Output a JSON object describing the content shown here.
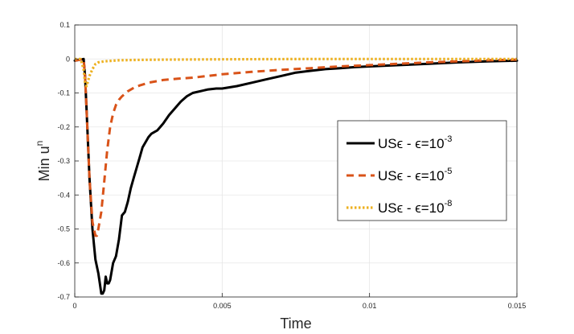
{
  "chart_data": {
    "type": "line",
    "title": "",
    "xlabel": "Time",
    "ylabel": "Min u",
    "ylabel_sup": "n",
    "xlim": [
      0,
      0.015
    ],
    "ylim": [
      -0.7,
      0.1
    ],
    "xticks": [
      0,
      0.005,
      0.01,
      0.015
    ],
    "xtick_labels": [
      "0",
      "0.005",
      "0.01",
      "0.015"
    ],
    "yticks": [
      0.1,
      0,
      -0.1,
      -0.2,
      -0.3,
      -0.4,
      -0.5,
      -0.6,
      -0.7
    ],
    "ytick_labels": [
      "0.1",
      "0",
      "-0.1",
      "-0.2",
      "-0.3",
      "-0.4",
      "-0.5",
      "-0.6",
      "-0.7"
    ],
    "grid": true,
    "legend_position": "right",
    "series": [
      {
        "name": "USϵ - ϵ=10",
        "name_sup": "-3",
        "color": "#000000",
        "style": "solid",
        "x": [
          0,
          0.0003,
          0.00035,
          0.0004,
          0.0005,
          0.0006,
          0.0007,
          0.0008,
          0.00085,
          0.0009,
          0.00095,
          0.001,
          0.00105,
          0.0011,
          0.00115,
          0.0012,
          0.0013,
          0.0014,
          0.0015,
          0.0016,
          0.0017,
          0.0018,
          0.0019,
          0.002,
          0.0021,
          0.0022,
          0.0023,
          0.0025,
          0.0026,
          0.0027,
          0.0028,
          0.003,
          0.0032,
          0.0034,
          0.0036,
          0.0038,
          0.004,
          0.0045,
          0.0048,
          0.005,
          0.0055,
          0.006,
          0.0065,
          0.007,
          0.0075,
          0.008,
          0.0085,
          0.009,
          0.0095,
          0.01,
          0.011,
          0.012,
          0.013,
          0.014,
          0.015
        ],
        "y": [
          -0.005,
          0,
          -0.05,
          -0.15,
          -0.35,
          -0.5,
          -0.59,
          -0.63,
          -0.66,
          -0.69,
          -0.69,
          -0.68,
          -0.64,
          -0.66,
          -0.66,
          -0.65,
          -0.6,
          -0.58,
          -0.53,
          -0.46,
          -0.45,
          -0.42,
          -0.38,
          -0.35,
          -0.32,
          -0.29,
          -0.26,
          -0.23,
          -0.22,
          -0.215,
          -0.21,
          -0.19,
          -0.165,
          -0.145,
          -0.125,
          -0.11,
          -0.1,
          -0.09,
          -0.087,
          -0.087,
          -0.08,
          -0.07,
          -0.06,
          -0.05,
          -0.04,
          -0.035,
          -0.03,
          -0.027,
          -0.024,
          -0.022,
          -0.018,
          -0.014,
          -0.01,
          -0.007,
          -0.005
        ]
      },
      {
        "name": "USϵ - ϵ=10",
        "name_sup": "-5",
        "color": "#d95319",
        "style": "dashed",
        "x": [
          0,
          0.0003,
          0.00035,
          0.0004,
          0.0005,
          0.0006,
          0.0007,
          0.00075,
          0.0008,
          0.0009,
          0.001,
          0.0011,
          0.0012,
          0.0013,
          0.0014,
          0.0015,
          0.0016,
          0.0018,
          0.002,
          0.0022,
          0.0025,
          0.003,
          0.0035,
          0.004,
          0.0045,
          0.005,
          0.006,
          0.007,
          0.008,
          0.009,
          0.01,
          0.011,
          0.012,
          0.013,
          0.014,
          0.015
        ],
        "y": [
          -0.005,
          0,
          -0.05,
          -0.15,
          -0.35,
          -0.48,
          -0.52,
          -0.52,
          -0.5,
          -0.45,
          -0.36,
          -0.27,
          -0.2,
          -0.16,
          -0.135,
          -0.12,
          -0.11,
          -0.095,
          -0.085,
          -0.078,
          -0.07,
          -0.062,
          -0.058,
          -0.055,
          -0.05,
          -0.045,
          -0.038,
          -0.032,
          -0.027,
          -0.022,
          -0.018,
          -0.014,
          -0.01,
          -0.007,
          -0.004,
          -0.002
        ]
      },
      {
        "name": "USϵ - ϵ=10",
        "name_sup": "-8",
        "color": "#edb120",
        "style": "dotted",
        "x": [
          0,
          0.0002,
          0.0003,
          0.00035,
          0.0004,
          0.0005,
          0.0006,
          0.0007,
          0.0008,
          0.001,
          0.0015,
          0.002,
          0.003,
          0.005,
          0.008,
          0.01,
          0.012,
          0.015
        ],
        "y": [
          0,
          0,
          -0.03,
          -0.07,
          -0.08,
          -0.05,
          -0.03,
          -0.015,
          -0.01,
          -0.007,
          -0.004,
          -0.003,
          -0.002,
          -0.001,
          0,
          0,
          0,
          0
        ]
      }
    ]
  }
}
